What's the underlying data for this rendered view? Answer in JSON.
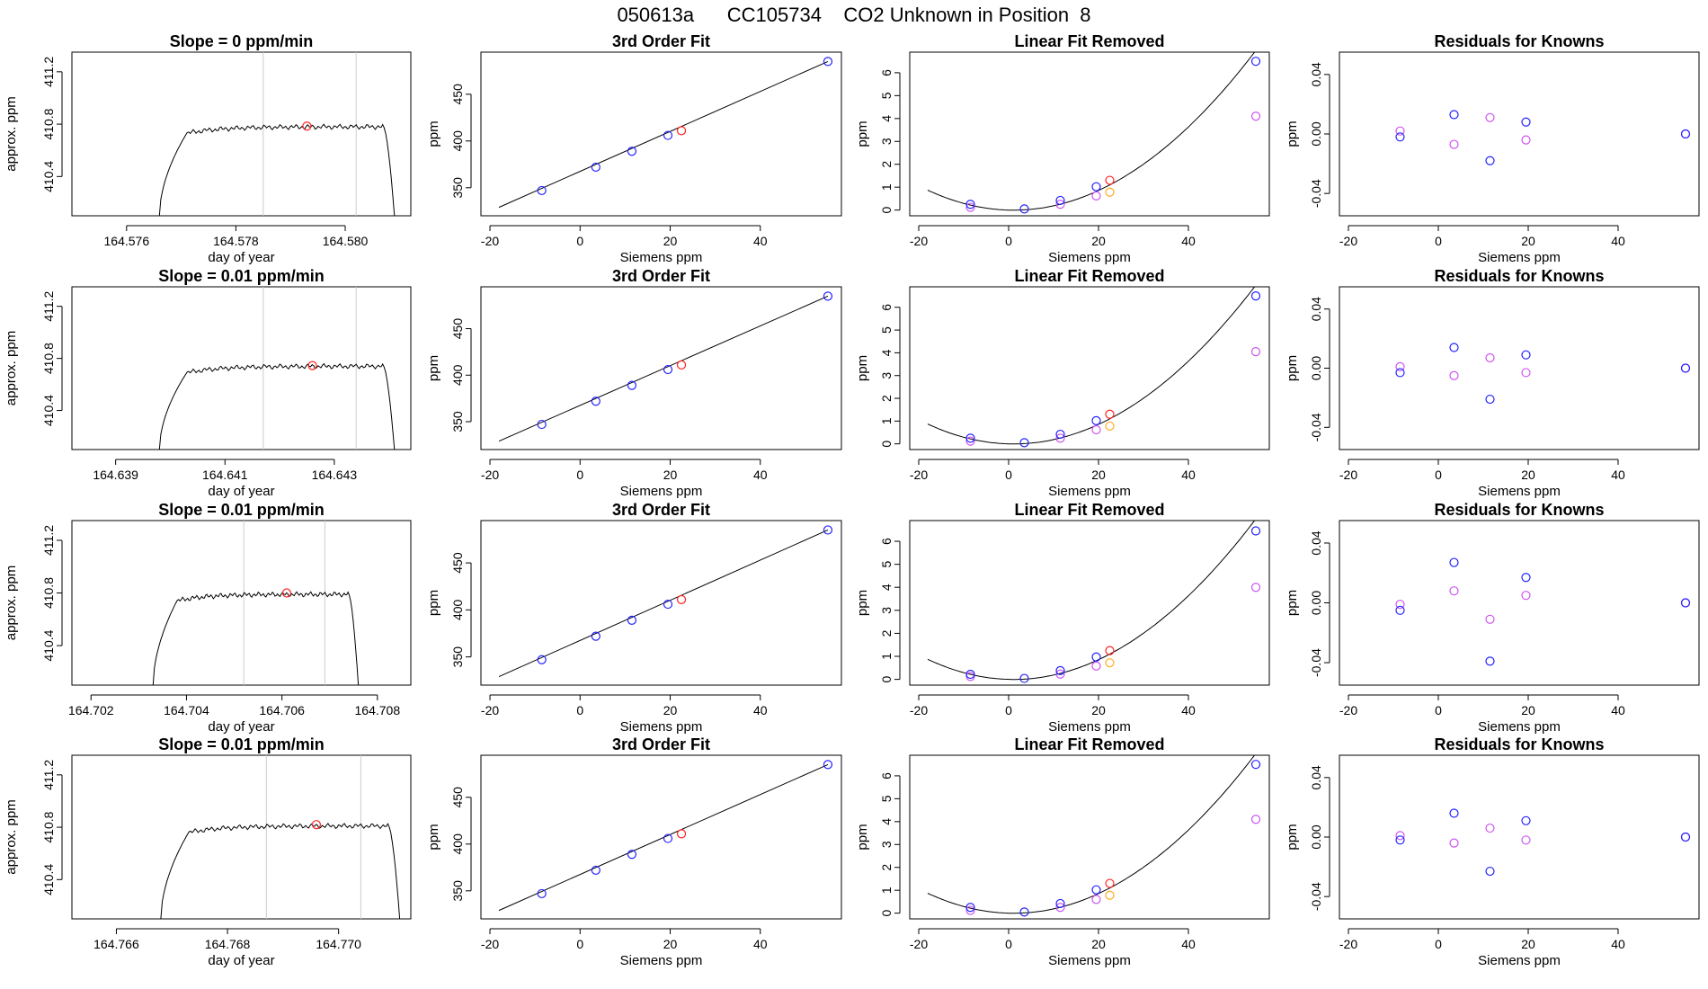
{
  "page": {
    "title": "050613a      CC105734    CO2 Unknown in Position  8"
  },
  "colors": {
    "line": "#000000",
    "blue": "#2222ff",
    "red": "#ff2222",
    "magenta": "#cc55ee",
    "orange": "#ffaa22",
    "grey": "#cccccc"
  },
  "chart_data": [
    {
      "type": "line",
      "title": "Slope =  0  ppm/min",
      "xlabel": "day of year",
      "ylabel": "approx. ppm",
      "xlim": [
        164.575,
        164.5812
      ],
      "ylim": [
        410.1,
        411.35
      ],
      "xticks": [
        "164.576",
        "164.578",
        "164.580"
      ],
      "xtick_values": [
        164.576,
        164.578,
        164.58
      ],
      "yticks": [
        "410.4",
        "410.8",
        "411.2"
      ],
      "ytick_values": [
        410.4,
        410.8,
        411.2
      ],
      "vlines": [
        164.5785,
        164.5802
      ],
      "marker": {
        "x": 164.5793,
        "y": 410.785
      },
      "trace": {
        "start": 164.5766,
        "rise_end": 164.5771,
        "plateau_end": 164.5807,
        "end": 164.5809,
        "level": 410.78,
        "y_start": 410.1
      }
    },
    {
      "type": "scatter",
      "title": "3rd Order Fit",
      "xlabel": "Siemens ppm",
      "ylabel": "ppm",
      "xlim": [
        -22,
        58
      ],
      "ylim": [
        320,
        495
      ],
      "xticks": [
        "-20",
        "0",
        "20",
        "40"
      ],
      "xtick_values": [
        -20,
        0,
        20,
        40
      ],
      "yticks": [
        "350",
        "400",
        "450"
      ],
      "ytick_values": [
        350,
        400,
        450
      ],
      "fit_line": [
        [
          -18,
          329
        ],
        [
          55,
          485
        ]
      ],
      "knowns_blue": [
        [
          -8.5,
          347
        ],
        [
          3.5,
          372
        ],
        [
          11.5,
          389
        ],
        [
          19.5,
          406
        ],
        [
          55,
          485
        ]
      ],
      "unknown_red": [
        [
          22.5,
          411
        ]
      ]
    },
    {
      "type": "scatter",
      "title": "Linear Fit Removed",
      "xlabel": "Siemens ppm",
      "ylabel": "ppm",
      "xlim": [
        -22,
        58
      ],
      "ylim": [
        -0.25,
        6.9
      ],
      "xticks": [
        "-20",
        "0",
        "20",
        "40"
      ],
      "xtick_values": [
        -20,
        0,
        20,
        40
      ],
      "yticks": [
        "0",
        "1",
        "2",
        "3",
        "4",
        "5",
        "6"
      ],
      "ytick_values": [
        0,
        1,
        2,
        3,
        4,
        5,
        6
      ],
      "curve": {
        "a": 0.0024,
        "b": -0.0052,
        "c": 0.0014,
        "x_from": -18,
        "x_to": 55
      },
      "knowns_blue": [
        [
          -8.5,
          0.25
        ],
        [
          3.5,
          0.05
        ],
        [
          11.5,
          0.42
        ],
        [
          19.5,
          1.02
        ],
        [
          55,
          6.5
        ]
      ],
      "knowns_magenta": [
        [
          -8.5,
          0.12
        ],
        [
          11.5,
          0.25
        ],
        [
          19.5,
          0.62
        ],
        [
          55,
          4.1
        ]
      ],
      "unknown_red": [
        [
          22.5,
          1.3
        ]
      ],
      "unknown_orange": [
        [
          22.5,
          0.78
        ]
      ]
    },
    {
      "type": "scatter",
      "title": "Residuals for Knowns",
      "xlabel": "Siemens ppm",
      "ylabel": "ppm",
      "xlim": [
        -22,
        58
      ],
      "ylim": [
        -0.055,
        0.055
      ],
      "xticks": [
        "-20",
        "0",
        "20",
        "40"
      ],
      "xtick_values": [
        -20,
        0,
        20,
        40
      ],
      "yticks": [
        "-0.04",
        "0.00",
        "0.04"
      ],
      "ytick_values": [
        -0.04,
        0,
        0.04
      ],
      "knowns_blue": [
        [
          -8.5,
          -0.002
        ],
        [
          3.5,
          0.013
        ],
        [
          11.5,
          -0.018
        ],
        [
          19.5,
          0.008
        ],
        [
          55,
          0.0
        ]
      ],
      "knowns_magenta": [
        [
          -8.5,
          0.002
        ],
        [
          3.5,
          -0.007
        ],
        [
          11.5,
          0.011
        ],
        [
          19.5,
          -0.004
        ],
        [
          55,
          0.0
        ]
      ]
    },
    {
      "type": "line",
      "title": "Slope =  0.01  ppm/min",
      "xlabel": "day of year",
      "ylabel": "approx. ppm",
      "xlim": [
        164.6382,
        164.6444
      ],
      "ylim": [
        410.1,
        411.35
      ],
      "xticks": [
        "164.639",
        "164.641",
        "164.643"
      ],
      "xtick_values": [
        164.639,
        164.641,
        164.643
      ],
      "yticks": [
        "410.4",
        "410.8",
        "411.2"
      ],
      "ytick_values": [
        410.4,
        410.8,
        411.2
      ],
      "vlines": [
        164.6417,
        164.6434
      ],
      "marker": {
        "x": 164.6426,
        "y": 410.745
      },
      "trace": {
        "start": 164.6398,
        "rise_end": 164.6403,
        "plateau_end": 164.6439,
        "end": 164.6441,
        "level": 410.74,
        "y_start": 410.1
      }
    },
    {
      "type": "scatter",
      "title": "3rd Order Fit",
      "xlabel": "Siemens ppm",
      "ylabel": "ppm",
      "xlim": [
        -22,
        58
      ],
      "ylim": [
        320,
        495
      ],
      "xticks": [
        "-20",
        "0",
        "20",
        "40"
      ],
      "xtick_values": [
        -20,
        0,
        20,
        40
      ],
      "yticks": [
        "350",
        "400",
        "450"
      ],
      "ytick_values": [
        350,
        400,
        450
      ],
      "fit_line": [
        [
          -18,
          329
        ],
        [
          55,
          485
        ]
      ],
      "knowns_blue": [
        [
          -8.5,
          347
        ],
        [
          3.5,
          372
        ],
        [
          11.5,
          389
        ],
        [
          19.5,
          406
        ],
        [
          55,
          485
        ]
      ],
      "unknown_red": [
        [
          22.5,
          411
        ]
      ]
    },
    {
      "type": "scatter",
      "title": "Linear Fit Removed",
      "xlabel": "Siemens ppm",
      "ylabel": "ppm",
      "xlim": [
        -22,
        58
      ],
      "ylim": [
        -0.25,
        6.9
      ],
      "xticks": [
        "-20",
        "0",
        "20",
        "40"
      ],
      "xtick_values": [
        -20,
        0,
        20,
        40
      ],
      "yticks": [
        "0",
        "1",
        "2",
        "3",
        "4",
        "5",
        "6"
      ],
      "ytick_values": [
        0,
        1,
        2,
        3,
        4,
        5,
        6
      ],
      "curve": {
        "a": 0.0024,
        "b": -0.0052,
        "c": 0.0014,
        "x_from": -18,
        "x_to": 55
      },
      "knowns_blue": [
        [
          -8.5,
          0.25
        ],
        [
          3.5,
          0.05
        ],
        [
          11.5,
          0.42
        ],
        [
          19.5,
          1.02
        ],
        [
          55,
          6.5
        ]
      ],
      "knowns_magenta": [
        [
          -8.5,
          0.12
        ],
        [
          11.5,
          0.25
        ],
        [
          19.5,
          0.62
        ],
        [
          55,
          4.05
        ]
      ],
      "unknown_red": [
        [
          22.5,
          1.3
        ]
      ],
      "unknown_orange": [
        [
          22.5,
          0.78
        ]
      ]
    },
    {
      "type": "scatter",
      "title": "Residuals for Knowns",
      "xlabel": "Siemens ppm",
      "ylabel": "ppm",
      "xlim": [
        -22,
        58
      ],
      "ylim": [
        -0.055,
        0.055
      ],
      "xticks": [
        "-20",
        "0",
        "20",
        "40"
      ],
      "xtick_values": [
        -20,
        0,
        20,
        40
      ],
      "yticks": [
        "-0.04",
        "0.00",
        "0.04"
      ],
      "ytick_values": [
        -0.04,
        0,
        0.04
      ],
      "knowns_blue": [
        [
          -8.5,
          -0.003
        ],
        [
          3.5,
          0.014
        ],
        [
          11.5,
          -0.021
        ],
        [
          19.5,
          0.009
        ],
        [
          55,
          0.0
        ]
      ],
      "knowns_magenta": [
        [
          -8.5,
          0.001
        ],
        [
          3.5,
          -0.005
        ],
        [
          11.5,
          0.007
        ],
        [
          19.5,
          -0.003
        ],
        [
          55,
          0.0
        ]
      ]
    },
    {
      "type": "line",
      "title": "Slope =  0.01  ppm/min",
      "xlabel": "day of year",
      "ylabel": "approx. ppm",
      "xlim": [
        164.7016,
        164.7087
      ],
      "ylim": [
        410.1,
        411.35
      ],
      "xticks": [
        "164.702",
        "164.704",
        "164.706",
        "164.708"
      ],
      "xtick_values": [
        164.702,
        164.704,
        164.706,
        164.708
      ],
      "yticks": [
        "410.4",
        "410.8",
        "411.2"
      ],
      "ytick_values": [
        410.4,
        410.8,
        411.2
      ],
      "vlines": [
        164.7052,
        164.7069
      ],
      "marker": {
        "x": 164.7061,
        "y": 410.8
      },
      "trace": {
        "start": 164.7033,
        "rise_end": 164.7038,
        "plateau_end": 164.7074,
        "end": 164.7076,
        "level": 410.79,
        "y_start": 410.1
      }
    },
    {
      "type": "scatter",
      "title": "3rd Order Fit",
      "xlabel": "Siemens ppm",
      "ylabel": "ppm",
      "xlim": [
        -22,
        58
      ],
      "ylim": [
        320,
        495
      ],
      "xticks": [
        "-20",
        "0",
        "20",
        "40"
      ],
      "xtick_values": [
        -20,
        0,
        20,
        40
      ],
      "yticks": [
        "350",
        "400",
        "450"
      ],
      "ytick_values": [
        350,
        400,
        450
      ],
      "fit_line": [
        [
          -18,
          329
        ],
        [
          55,
          485
        ]
      ],
      "knowns_blue": [
        [
          -8.5,
          347
        ],
        [
          3.5,
          372
        ],
        [
          11.5,
          389
        ],
        [
          19.5,
          406
        ],
        [
          55,
          485
        ]
      ],
      "unknown_red": [
        [
          22.5,
          411
        ]
      ]
    },
    {
      "type": "scatter",
      "title": "Linear Fit Removed",
      "xlabel": "Siemens ppm",
      "ylabel": "ppm",
      "xlim": [
        -22,
        58
      ],
      "ylim": [
        -0.25,
        6.9
      ],
      "xticks": [
        "-20",
        "0",
        "20",
        "40"
      ],
      "xtick_values": [
        -20,
        0,
        20,
        40
      ],
      "yticks": [
        "0",
        "1",
        "2",
        "3",
        "4",
        "5",
        "6"
      ],
      "ytick_values": [
        0,
        1,
        2,
        3,
        4,
        5,
        6
      ],
      "curve": {
        "a": 0.0024,
        "b": -0.0052,
        "c": 0.0014,
        "x_from": -18,
        "x_to": 55
      },
      "knowns_blue": [
        [
          -8.5,
          0.22
        ],
        [
          3.5,
          0.04
        ],
        [
          11.5,
          0.38
        ],
        [
          19.5,
          0.97
        ],
        [
          55,
          6.45
        ]
      ],
      "knowns_magenta": [
        [
          -8.5,
          0.12
        ],
        [
          11.5,
          0.23
        ],
        [
          19.5,
          0.58
        ],
        [
          55,
          4.0
        ]
      ],
      "unknown_red": [
        [
          22.5,
          1.25
        ]
      ],
      "unknown_orange": [
        [
          22.5,
          0.72
        ]
      ]
    },
    {
      "type": "scatter",
      "title": "Residuals for Knowns",
      "xlabel": "Siemens ppm",
      "ylabel": "ppm",
      "xlim": [
        -22,
        58
      ],
      "ylim": [
        -0.055,
        0.055
      ],
      "xticks": [
        "-20",
        "0",
        "20",
        "40"
      ],
      "xtick_values": [
        -20,
        0,
        20,
        40
      ],
      "yticks": [
        "-0.04",
        "0.00",
        "0.04"
      ],
      "ytick_values": [
        -0.04,
        0,
        0.04
      ],
      "knowns_blue": [
        [
          -8.5,
          -0.005
        ],
        [
          3.5,
          0.027
        ],
        [
          11.5,
          -0.039
        ],
        [
          19.5,
          0.017
        ],
        [
          55,
          0.0
        ]
      ],
      "knowns_magenta": [
        [
          -8.5,
          -0.001
        ],
        [
          3.5,
          0.008
        ],
        [
          11.5,
          -0.011
        ],
        [
          19.5,
          0.005
        ],
        [
          55,
          0.0
        ]
      ]
    },
    {
      "type": "line",
      "title": "Slope =  0.01  ppm/min",
      "xlabel": "day of year",
      "ylabel": "approx. ppm",
      "xlim": [
        164.7652,
        164.7713
      ],
      "ylim": [
        410.1,
        411.35
      ],
      "xticks": [
        "164.766",
        "164.768",
        "164.770"
      ],
      "xtick_values": [
        164.766,
        164.768,
        164.77
      ],
      "yticks": [
        "410.4",
        "410.8",
        "411.2"
      ],
      "ytick_values": [
        410.4,
        410.8,
        411.2
      ],
      "vlines": [
        164.7687,
        164.7704
      ],
      "marker": {
        "x": 164.7696,
        "y": 410.82
      },
      "trace": {
        "start": 164.7668,
        "rise_end": 164.7673,
        "plateau_end": 164.7709,
        "end": 164.7711,
        "level": 410.81,
        "y_start": 410.1
      }
    },
    {
      "type": "scatter",
      "title": "3rd Order Fit",
      "xlabel": "Siemens ppm",
      "ylabel": "ppm",
      "xlim": [
        -22,
        58
      ],
      "ylim": [
        320,
        495
      ],
      "xticks": [
        "-20",
        "0",
        "20",
        "40"
      ],
      "xtick_values": [
        -20,
        0,
        20,
        40
      ],
      "yticks": [
        "350",
        "400",
        "450"
      ],
      "ytick_values": [
        350,
        400,
        450
      ],
      "fit_line": [
        [
          -18,
          329
        ],
        [
          55,
          485
        ]
      ],
      "knowns_blue": [
        [
          -8.5,
          347
        ],
        [
          3.5,
          372
        ],
        [
          11.5,
          389
        ],
        [
          19.5,
          406
        ],
        [
          55,
          485
        ]
      ],
      "unknown_red": [
        [
          22.5,
          411
        ]
      ]
    },
    {
      "type": "scatter",
      "title": "Linear Fit Removed",
      "xlabel": "Siemens ppm",
      "ylabel": "ppm",
      "xlim": [
        -22,
        58
      ],
      "ylim": [
        -0.25,
        6.9
      ],
      "xticks": [
        "-20",
        "0",
        "20",
        "40"
      ],
      "xtick_values": [
        -20,
        0,
        20,
        40
      ],
      "yticks": [
        "0",
        "1",
        "2",
        "3",
        "4",
        "5",
        "6"
      ],
      "ytick_values": [
        0,
        1,
        2,
        3,
        4,
        5,
        6
      ],
      "curve": {
        "a": 0.0024,
        "b": -0.0052,
        "c": 0.0014,
        "x_from": -18,
        "x_to": 55
      },
      "knowns_blue": [
        [
          -8.5,
          0.25
        ],
        [
          3.5,
          0.05
        ],
        [
          11.5,
          0.42
        ],
        [
          19.5,
          1.02
        ],
        [
          55,
          6.5
        ]
      ],
      "knowns_magenta": [
        [
          -8.5,
          0.12
        ],
        [
          11.5,
          0.25
        ],
        [
          19.5,
          0.6
        ],
        [
          55,
          4.1
        ]
      ],
      "unknown_red": [
        [
          22.5,
          1.3
        ]
      ],
      "unknown_orange": [
        [
          22.5,
          0.78
        ]
      ]
    },
    {
      "type": "scatter",
      "title": "Residuals for Knowns",
      "xlabel": "Siemens ppm",
      "ylabel": "ppm",
      "xlim": [
        -22,
        58
      ],
      "ylim": [
        -0.055,
        0.055
      ],
      "xticks": [
        "-20",
        "0",
        "20",
        "40"
      ],
      "xtick_values": [
        -20,
        0,
        20,
        40
      ],
      "yticks": [
        "-0.04",
        "0.00",
        "0.04"
      ],
      "ytick_values": [
        -0.04,
        0,
        0.04
      ],
      "knowns_blue": [
        [
          -8.5,
          -0.002
        ],
        [
          3.5,
          0.016
        ],
        [
          11.5,
          -0.023
        ],
        [
          19.5,
          0.011
        ],
        [
          55,
          0.0
        ]
      ],
      "knowns_magenta": [
        [
          -8.5,
          0.001
        ],
        [
          3.5,
          -0.004
        ],
        [
          11.5,
          0.006
        ],
        [
          19.5,
          -0.002
        ],
        [
          55,
          0.0
        ]
      ]
    }
  ]
}
